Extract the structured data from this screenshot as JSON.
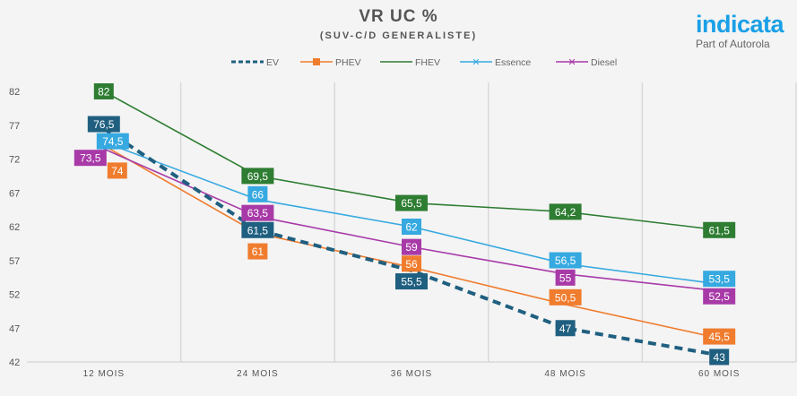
{
  "logo": {
    "name": "indicata",
    "tagline": "Part of Autorola"
  },
  "chart_data": {
    "type": "line",
    "title": "VR UC %",
    "subtitle": "(SUV-C/D GENERALISTE)",
    "xlabel": "",
    "ylabel": "",
    "categories": [
      "12 MOIS",
      "24 MOIS",
      "36 MOIS",
      "48 MOIS",
      "60 MOIS"
    ],
    "ylim": [
      42,
      82
    ],
    "yticks": [
      42,
      47,
      52,
      57,
      62,
      67,
      72,
      77,
      82
    ],
    "grid": "vertical",
    "legend": "top-center",
    "series": [
      {
        "name": "EV",
        "color": "#1f5f80",
        "dashed": true,
        "values": [
          76.5,
          61.5,
          55.5,
          47,
          43
        ],
        "labels": [
          "76,5",
          "61,5",
          "55,5",
          "47",
          "43"
        ]
      },
      {
        "name": "PHEV",
        "color": "#f07c2e",
        "values": [
          74,
          61,
          56,
          50.5,
          45.5
        ],
        "labels": [
          "74",
          "61",
          "56",
          "50,5",
          "45,5"
        ]
      },
      {
        "name": "FHEV",
        "color": "#2e7d32",
        "values": [
          82,
          69.5,
          65.5,
          64.2,
          61.5
        ],
        "labels": [
          "82",
          "69,5",
          "65,5",
          "64,2",
          "61,5"
        ]
      },
      {
        "name": "Essence",
        "color": "#36a9e0",
        "values": [
          74.5,
          66,
          62,
          56.5,
          53.5
        ],
        "labels": [
          "74,5",
          "66",
          "62",
          "56,5",
          "53,5"
        ]
      },
      {
        "name": "Diesel",
        "color": "#a83aa8",
        "values": [
          73.5,
          63.5,
          59,
          55,
          52.5
        ],
        "labels": [
          "73,5",
          "63,5",
          "59",
          "55",
          "52,5"
        ]
      }
    ]
  }
}
